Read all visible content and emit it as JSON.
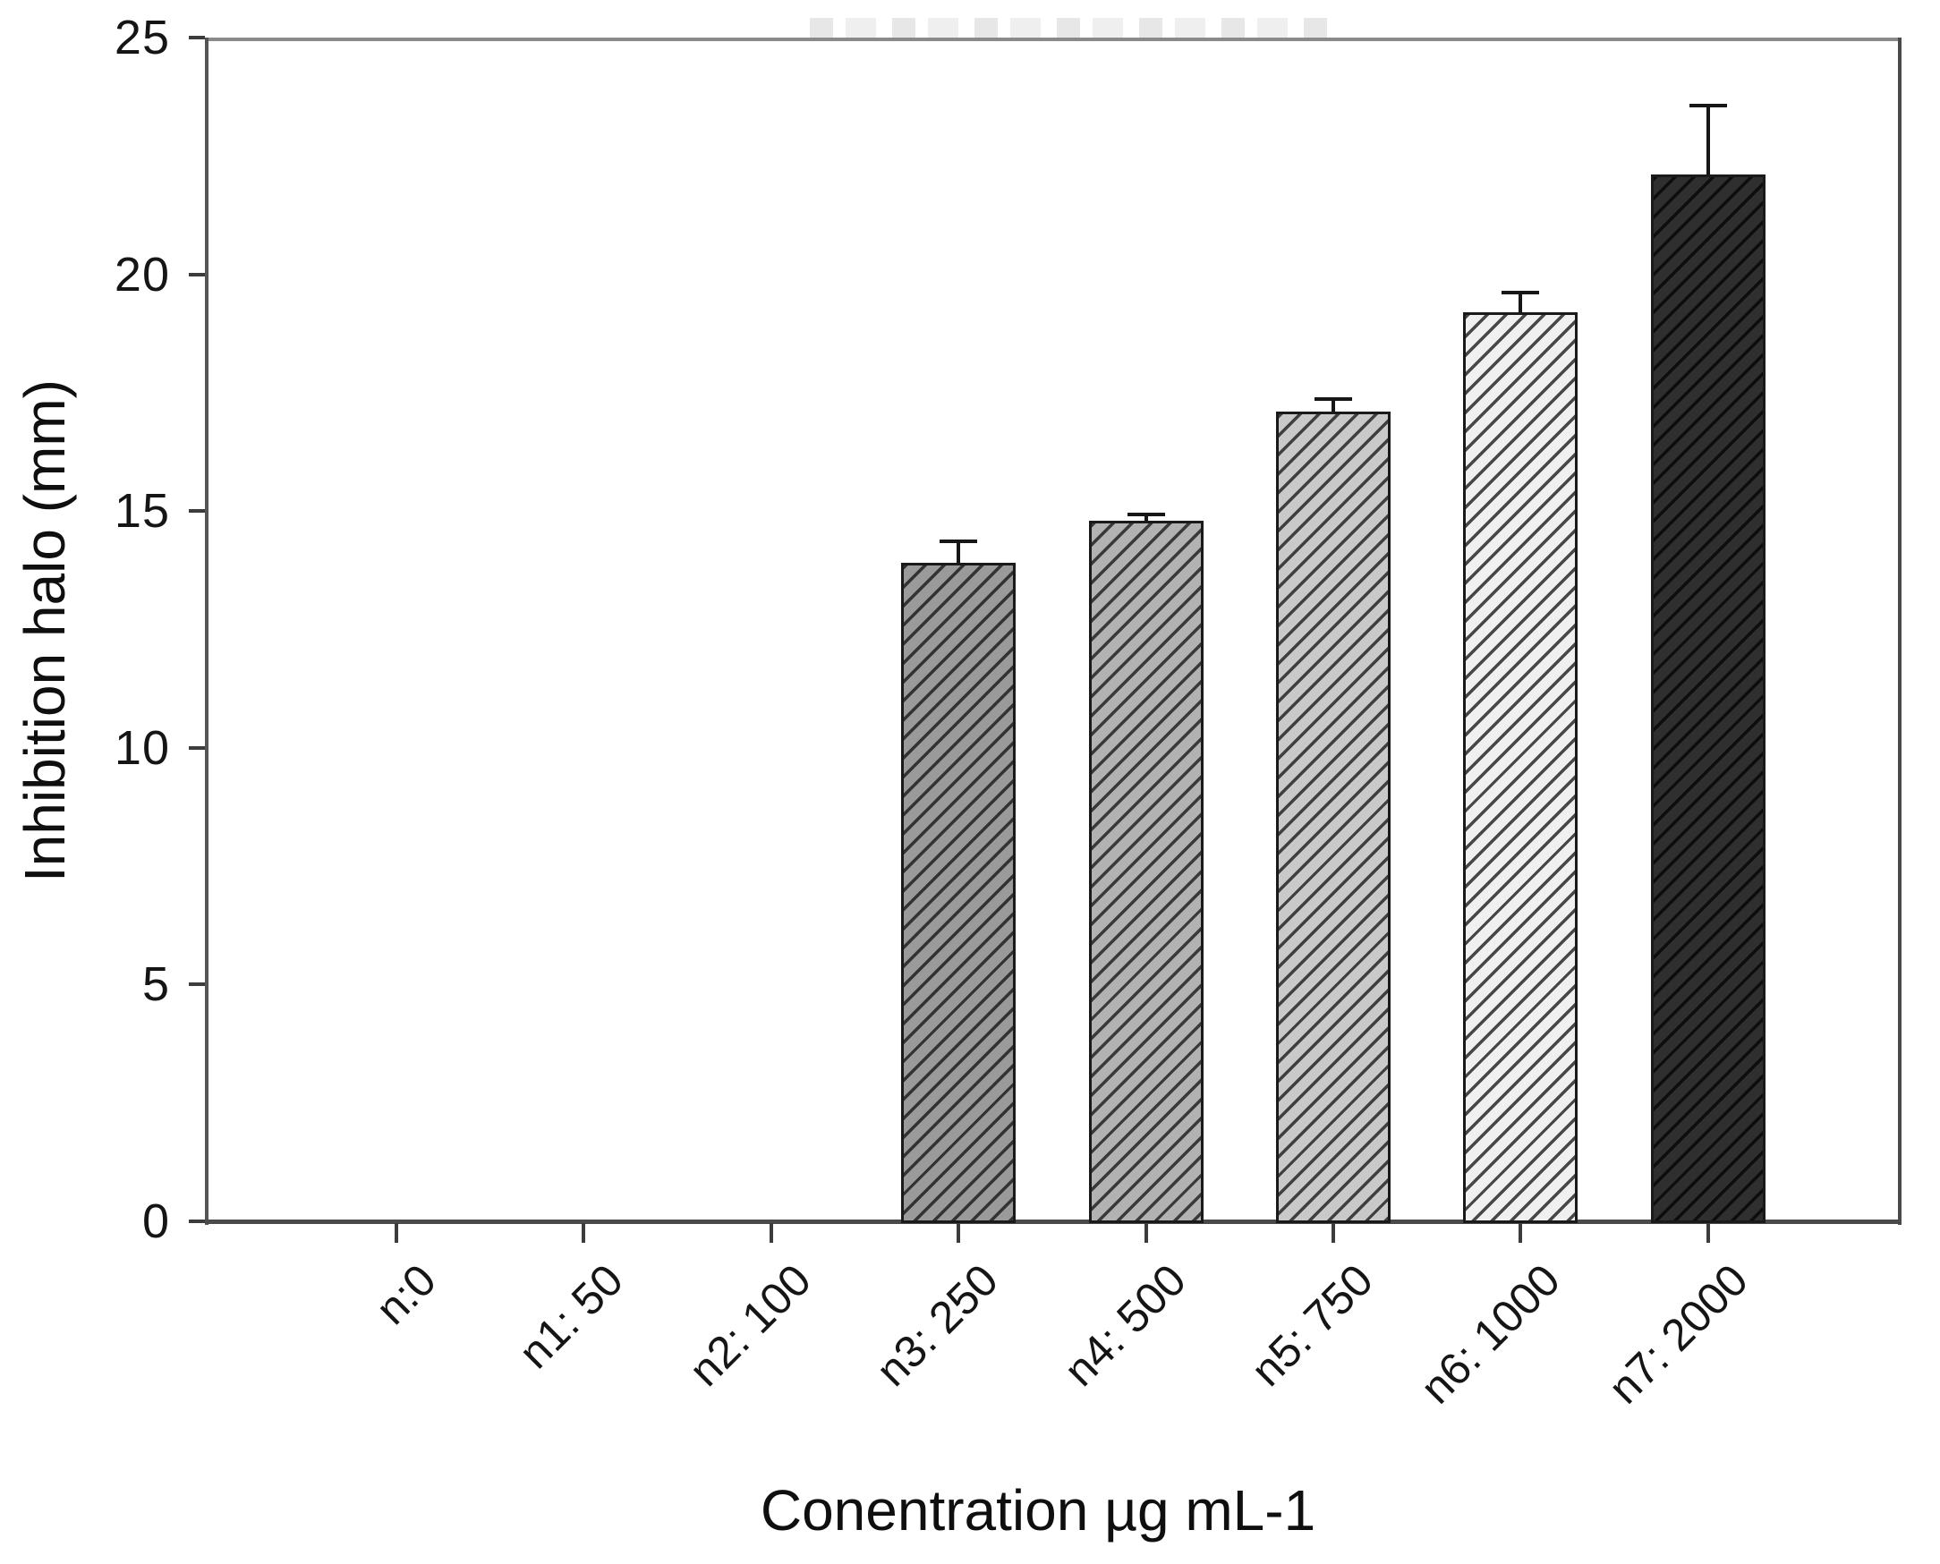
{
  "colors": {
    "frame": "#6f6f6f",
    "text": "#111111",
    "error_bar": "#161616",
    "bar_border": "#1a1a1a"
  },
  "chart_data": {
    "type": "bar",
    "title": "",
    "xlabel": "Conentration µg mL-1",
    "ylabel": "Inhibition halo (mm)",
    "ylim": [
      0,
      25
    ],
    "yticks": [
      0,
      5,
      10,
      15,
      20,
      25
    ],
    "grid": false,
    "legend": null,
    "categories": [
      "n:0",
      "n1: 50",
      "n2: 100",
      "n3: 250",
      "n4: 500",
      "n5: 750",
      "n6: 1000",
      "n7: 2000"
    ],
    "values": [
      0,
      0,
      0,
      13.9,
      14.8,
      17.1,
      19.2,
      22.1
    ],
    "errors_upper": [
      0,
      0,
      0,
      0.45,
      0.1,
      0.25,
      0.4,
      1.45
    ],
    "bar_styles": [
      null,
      null,
      null,
      {
        "fill": "#9a9a9a",
        "hatch": "#333333"
      },
      {
        "fill": "#b2b2b2",
        "hatch": "#3a3a3a"
      },
      {
        "fill": "#c9c9c9",
        "hatch": "#404040"
      },
      {
        "fill": "#f0f0f0",
        "hatch": "#474747"
      },
      {
        "fill": "#2f2f2f",
        "hatch": "#0d0d0d"
      }
    ],
    "hatch_pattern": "diagonal-forward-slash"
  }
}
